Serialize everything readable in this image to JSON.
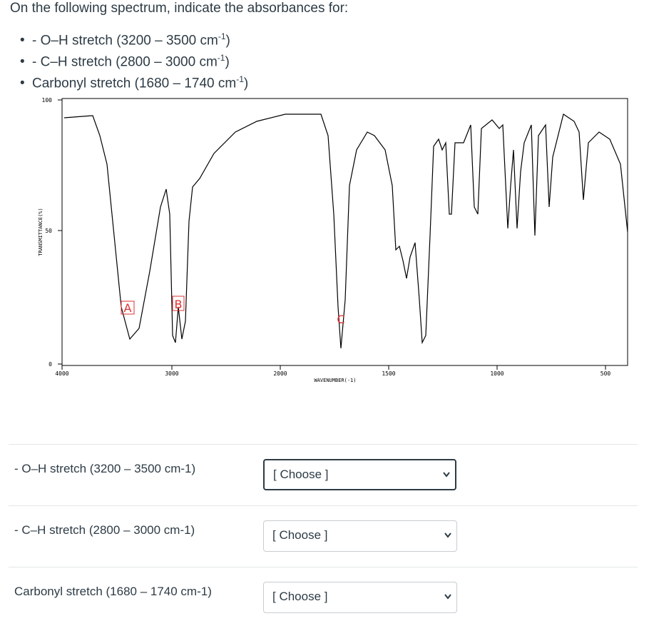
{
  "header": {
    "title": "On the following spectrum, indicate the absorbances for:"
  },
  "bullets": [
    {
      "text": "- O–H stretch (3200 – 3500 cm",
      "sup": "-1",
      "tail": ")"
    },
    {
      "text": "- C–H stretch (2800 – 3000 cm",
      "sup": "-1",
      "tail": ")"
    },
    {
      "text": "Carbonyl stretch (1680 – 1740 cm",
      "sup": "-1",
      "tail": ")"
    }
  ],
  "spectrum": {
    "ylabel": "TRANSMITTANCE(%)",
    "xlabel": "WAVENUMBER(-1)",
    "yticks": [
      "100",
      "50",
      "0"
    ],
    "xticks": [
      "4000",
      "3000",
      "2000",
      "1500",
      "1000",
      "500"
    ],
    "peaks": [
      "A",
      "B",
      "C"
    ]
  },
  "questions": [
    {
      "label": "- O–H stretch (3200 – 3500 cm-1)",
      "select": "[ Choose ]"
    },
    {
      "label": "- C–H stretch (2800 – 3000 cm-1)",
      "select": "[ Choose ]"
    },
    {
      "label": "Carbonyl stretch (1680 – 1740 cm-1)",
      "select": "[ Choose ]"
    }
  ]
}
